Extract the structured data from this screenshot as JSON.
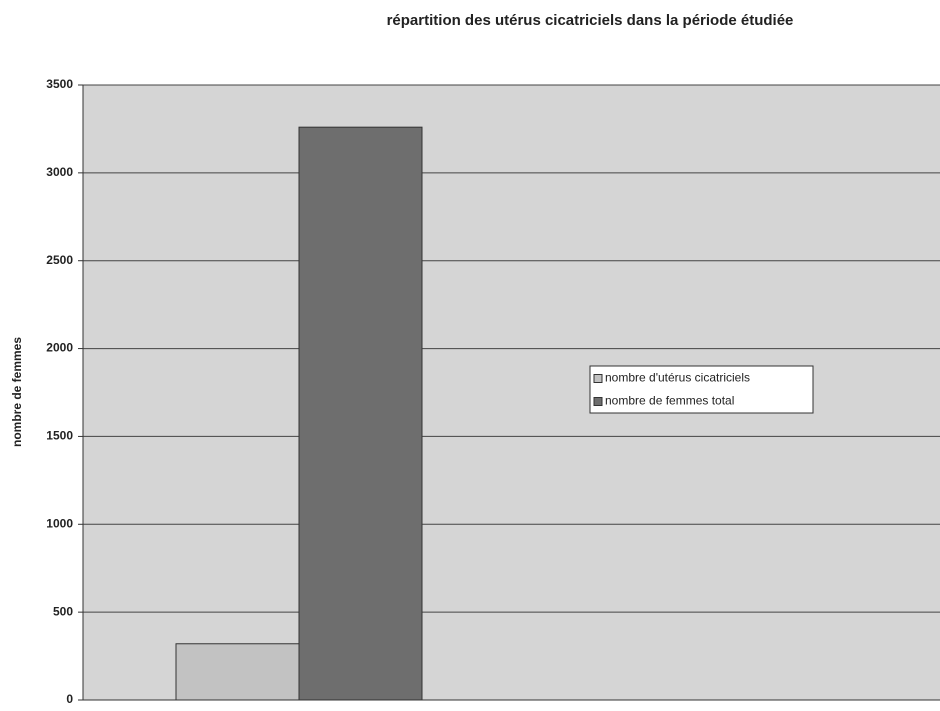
{
  "chart_data": {
    "type": "bar",
    "title": "répartition des utérus cicatriciels dans la période étudiée",
    "y_label": "nombre de femmes",
    "categories": [
      null
    ],
    "series": [
      {
        "name": "nombre d'utérus cicatriciels",
        "color": "#c2c2c2",
        "values": [
          320
        ]
      },
      {
        "name": "nombre de femmes total",
        "color": "#6e6e6e",
        "values": [
          3260
        ]
      }
    ],
    "ylim": [
      0,
      3500
    ],
    "yticks": [
      0,
      500,
      1000,
      1500,
      2000,
      2500,
      3000,
      3500
    ],
    "grid": true,
    "legend": "right"
  }
}
